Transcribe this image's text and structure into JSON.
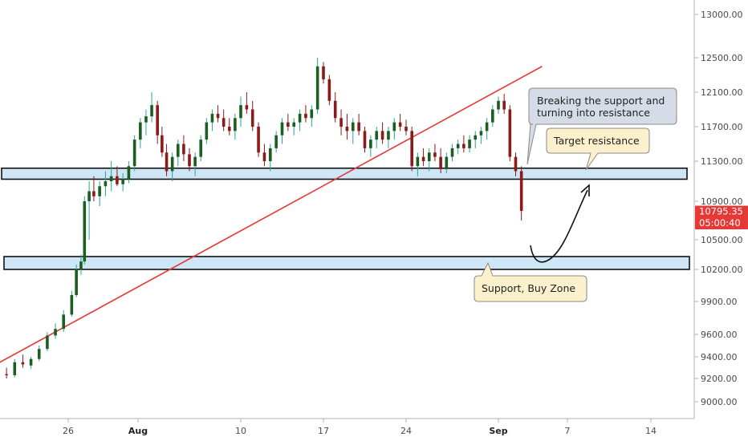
{
  "chart_data": {
    "type": "candlestick",
    "y_axis_position": "right",
    "ylim": [
      8750,
      13300
    ],
    "y_ticks": [
      "13000.00",
      "12500.00",
      "12100.00",
      "11700.00",
      "11300.00",
      "10900.00",
      "10500.00",
      "10200.00",
      "9900.00",
      "9600.00",
      "9400.00",
      "9200.00",
      "9000.00"
    ],
    "x_ticks": [
      {
        "label": "26",
        "day": 26,
        "bold": false
      },
      {
        "label": "Aug",
        "day": 32,
        "bold": true
      },
      {
        "label": "10",
        "day": 41,
        "bold": false
      },
      {
        "label": "17",
        "day": 48,
        "bold": false
      },
      {
        "label": "24",
        "day": 55,
        "bold": false
      },
      {
        "label": "Sep",
        "day": 63,
        "bold": true
      },
      {
        "label": "7",
        "day": 69,
        "bold": false
      },
      {
        "label": "14",
        "day": 76,
        "bold": false
      }
    ],
    "xlim_days": [
      18.6,
      79.0
    ],
    "current_price": {
      "label": "10795.35",
      "value": 10795.35,
      "color": "#e53935"
    },
    "countdown": {
      "label": "05:00:40",
      "color": "#e53935"
    },
    "up_color": "#26a69a",
    "up_body_color": "#1b5e20",
    "down_color": "#8b1a1a",
    "zones": [
      {
        "name": "resistance-zone",
        "from": 11120,
        "to": 11230,
        "color": "#cfe6f7"
      },
      {
        "name": "support-zone",
        "from": 10200,
        "to": 10330,
        "color": "#cfe6f7"
      }
    ],
    "trendline": {
      "from": {
        "day": 18.6,
        "price": 9260
      },
      "to": {
        "day": 66.8,
        "price": 12400
      },
      "color": "#e53935"
    },
    "annotations": {
      "breaking": [
        "Breaking the support and",
        "turning into resistance"
      ],
      "target": "Target resistance",
      "support": "Support, Buy Zone"
    },
    "candles": [
      [
        18.6,
        9120,
        9150,
        9100,
        9140
      ],
      [
        19.3,
        9140,
        9180,
        9110,
        9160
      ],
      [
        20.0,
        9150,
        9260,
        9140,
        9240
      ],
      [
        20.7,
        9240,
        9300,
        9200,
        9230
      ],
      [
        21.4,
        9230,
        9380,
        9210,
        9350
      ],
      [
        22.1,
        9350,
        9420,
        9300,
        9330
      ],
      [
        22.8,
        9320,
        9400,
        9290,
        9380
      ],
      [
        23.5,
        9380,
        9500,
        9360,
        9470
      ],
      [
        24.2,
        9470,
        9620,
        9450,
        9590
      ],
      [
        24.9,
        9590,
        9700,
        9560,
        9650
      ],
      [
        25.6,
        9650,
        9820,
        9620,
        9780
      ],
      [
        26.3,
        9780,
        10000,
        9760,
        9960
      ],
      [
        26.7,
        9960,
        10250,
        9940,
        10200
      ],
      [
        27.1,
        10200,
        10350,
        10150,
        10280
      ],
      [
        27.4,
        10280,
        10950,
        10250,
        10900
      ],
      [
        27.8,
        10900,
        11100,
        10500,
        11000
      ],
      [
        28.2,
        11000,
        11150,
        10900,
        10950
      ],
      [
        28.7,
        10950,
        11100,
        10850,
        11050
      ],
      [
        29.2,
        11050,
        11200,
        10950,
        11100
      ],
      [
        29.7,
        11100,
        11300,
        11000,
        11150
      ],
      [
        30.2,
        11150,
        11250,
        11050,
        11070
      ],
      [
        30.7,
        11070,
        11180,
        11000,
        11120
      ],
      [
        31.2,
        11120,
        11300,
        11080,
        11250
      ],
      [
        31.7,
        11250,
        11600,
        11200,
        11550
      ],
      [
        32.2,
        11550,
        11800,
        11450,
        11750
      ],
      [
        32.7,
        11750,
        11900,
        11600,
        11820
      ],
      [
        33.2,
        11820,
        12100,
        11750,
        11950
      ],
      [
        33.7,
        11950,
        12000,
        11500,
        11600
      ],
      [
        34.1,
        11600,
        11700,
        11350,
        11400
      ],
      [
        34.5,
        11400,
        11500,
        11150,
        11200
      ],
      [
        35.0,
        11200,
        11400,
        11100,
        11350
      ],
      [
        35.5,
        11350,
        11550,
        11250,
        11500
      ],
      [
        36.0,
        11500,
        11600,
        11300,
        11380
      ],
      [
        36.5,
        11380,
        11450,
        11200,
        11250
      ],
      [
        37.0,
        11250,
        11400,
        11150,
        11350
      ],
      [
        37.5,
        11350,
        11600,
        11300,
        11550
      ],
      [
        38.0,
        11550,
        11800,
        11500,
        11750
      ],
      [
        38.5,
        11750,
        11900,
        11650,
        11850
      ],
      [
        39.0,
        11850,
        11950,
        11750,
        11800
      ],
      [
        39.5,
        11800,
        11900,
        11650,
        11700
      ],
      [
        40.0,
        11700,
        11800,
        11600,
        11650
      ],
      [
        40.5,
        11650,
        11850,
        11550,
        11800
      ],
      [
        41.0,
        11800,
        12050,
        11700,
        11950
      ],
      [
        41.5,
        11950,
        12100,
        11850,
        11900
      ],
      [
        42.0,
        11900,
        12000,
        11650,
        11700
      ],
      [
        42.5,
        11700,
        11750,
        11350,
        11400
      ],
      [
        43.0,
        11400,
        11500,
        11250,
        11300
      ],
      [
        43.5,
        11300,
        11500,
        11200,
        11450
      ],
      [
        44.0,
        11450,
        11650,
        11400,
        11600
      ],
      [
        44.5,
        11600,
        11800,
        11500,
        11750
      ],
      [
        45.0,
        11750,
        11850,
        11650,
        11700
      ],
      [
        45.5,
        11700,
        11800,
        11600,
        11750
      ],
      [
        46.0,
        11750,
        11900,
        11650,
        11850
      ],
      [
        46.5,
        11850,
        11950,
        11750,
        11800
      ],
      [
        47.0,
        11800,
        11950,
        11700,
        11900
      ],
      [
        47.5,
        11900,
        12500,
        11850,
        12400
      ],
      [
        48.0,
        12400,
        12450,
        12200,
        12250
      ],
      [
        48.5,
        12250,
        12300,
        11950,
        12000
      ],
      [
        49.0,
        12000,
        12100,
        11750,
        11800
      ],
      [
        49.5,
        11800,
        11900,
        11600,
        11700
      ],
      [
        50.0,
        11700,
        11850,
        11550,
        11650
      ],
      [
        50.5,
        11650,
        11800,
        11500,
        11750
      ],
      [
        51.0,
        11750,
        11850,
        11600,
        11650
      ],
      [
        51.5,
        11650,
        11700,
        11400,
        11450
      ],
      [
        52.0,
        11450,
        11600,
        11350,
        11550
      ],
      [
        52.5,
        11550,
        11700,
        11450,
        11650
      ],
      [
        53.0,
        11650,
        11750,
        11500,
        11550
      ],
      [
        53.5,
        11550,
        11700,
        11450,
        11650
      ],
      [
        54.0,
        11650,
        11800,
        11550,
        11750
      ],
      [
        54.5,
        11750,
        11850,
        11650,
        11700
      ],
      [
        55.0,
        11700,
        11780,
        11600,
        11650
      ],
      [
        55.5,
        11650,
        11700,
        11200,
        11250
      ],
      [
        56.0,
        11250,
        11400,
        11150,
        11350
      ],
      [
        56.5,
        11350,
        11450,
        11250,
        11300
      ],
      [
        57.0,
        11300,
        11450,
        11200,
        11400
      ],
      [
        57.5,
        11400,
        11500,
        11300,
        11350
      ],
      [
        58.0,
        11350,
        11450,
        11180,
        11220
      ],
      [
        58.5,
        11220,
        11400,
        11180,
        11350
      ],
      [
        59.0,
        11350,
        11500,
        11300,
        11450
      ],
      [
        59.5,
        11450,
        11550,
        11380,
        11500
      ],
      [
        60.0,
        11500,
        11600,
        11400,
        11450
      ],
      [
        60.5,
        11450,
        11600,
        11400,
        11550
      ],
      [
        61.0,
        11550,
        11650,
        11450,
        11600
      ],
      [
        61.5,
        11600,
        11700,
        11500,
        11650
      ],
      [
        62.0,
        11650,
        11800,
        11550,
        11750
      ],
      [
        62.5,
        11750,
        11950,
        11700,
        11900
      ],
      [
        63.0,
        11900,
        12050,
        11850,
        12000
      ],
      [
        63.5,
        12000,
        12080,
        11850,
        11900
      ],
      [
        64.0,
        11900,
        11950,
        11300,
        11350
      ],
      [
        64.5,
        11350,
        11400,
        11150,
        11200
      ],
      [
        65.0,
        11200,
        11250,
        10700,
        10800
      ]
    ]
  }
}
